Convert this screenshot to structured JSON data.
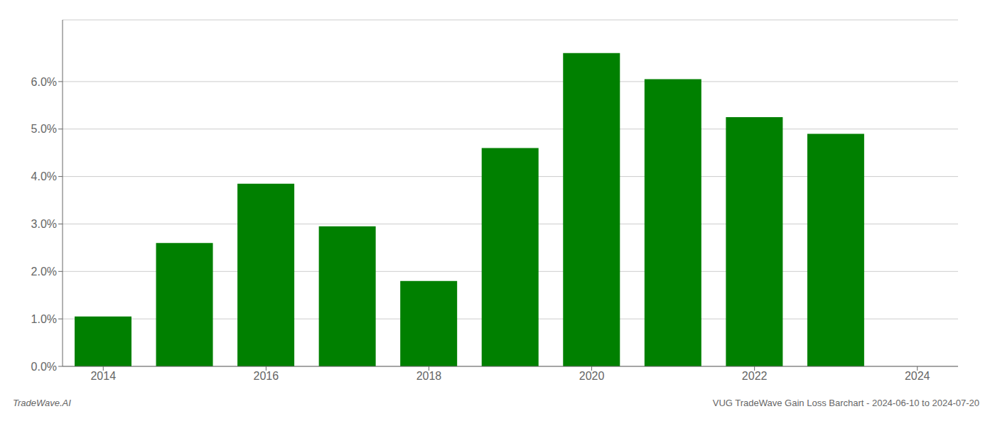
{
  "chart_data": {
    "type": "bar",
    "x": [
      2014,
      2015,
      2016,
      2017,
      2018,
      2019,
      2020,
      2021,
      2022,
      2023
    ],
    "values": [
      0.0105,
      0.026,
      0.0385,
      0.0295,
      0.018,
      0.046,
      0.066,
      0.0605,
      0.0525,
      0.049
    ],
    "color": "#008000",
    "xlim": [
      2013.5,
      2024.5
    ],
    "xticks": [
      2014,
      2016,
      2018,
      2020,
      2022,
      2024
    ],
    "ylim": [
      0,
      0.073
    ],
    "yticks": [
      {
        "value": 0.0,
        "label": "0.0%"
      },
      {
        "value": 0.01,
        "label": "1.0%"
      },
      {
        "value": 0.02,
        "label": "2.0%"
      },
      {
        "value": 0.03,
        "label": "3.0%"
      },
      {
        "value": 0.04,
        "label": "4.0%"
      },
      {
        "value": 0.05,
        "label": "5.0%"
      },
      {
        "value": 0.06,
        "label": "6.0%"
      }
    ],
    "grid": true,
    "annotations": [
      "TradeWave.AI",
      "VUG TradeWave Gain Loss Barchart - 2024-06-10 to 2024-07-20"
    ]
  }
}
